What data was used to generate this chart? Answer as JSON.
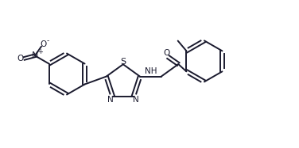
{
  "bg_color": "#ffffff",
  "line_color": "#1a1a2e",
  "line_width": 1.4,
  "font_size": 7.5,
  "figsize": [
    3.76,
    1.87
  ],
  "dpi": 100,
  "xlim": [
    0,
    10
  ],
  "ylim": [
    0,
    5
  ]
}
